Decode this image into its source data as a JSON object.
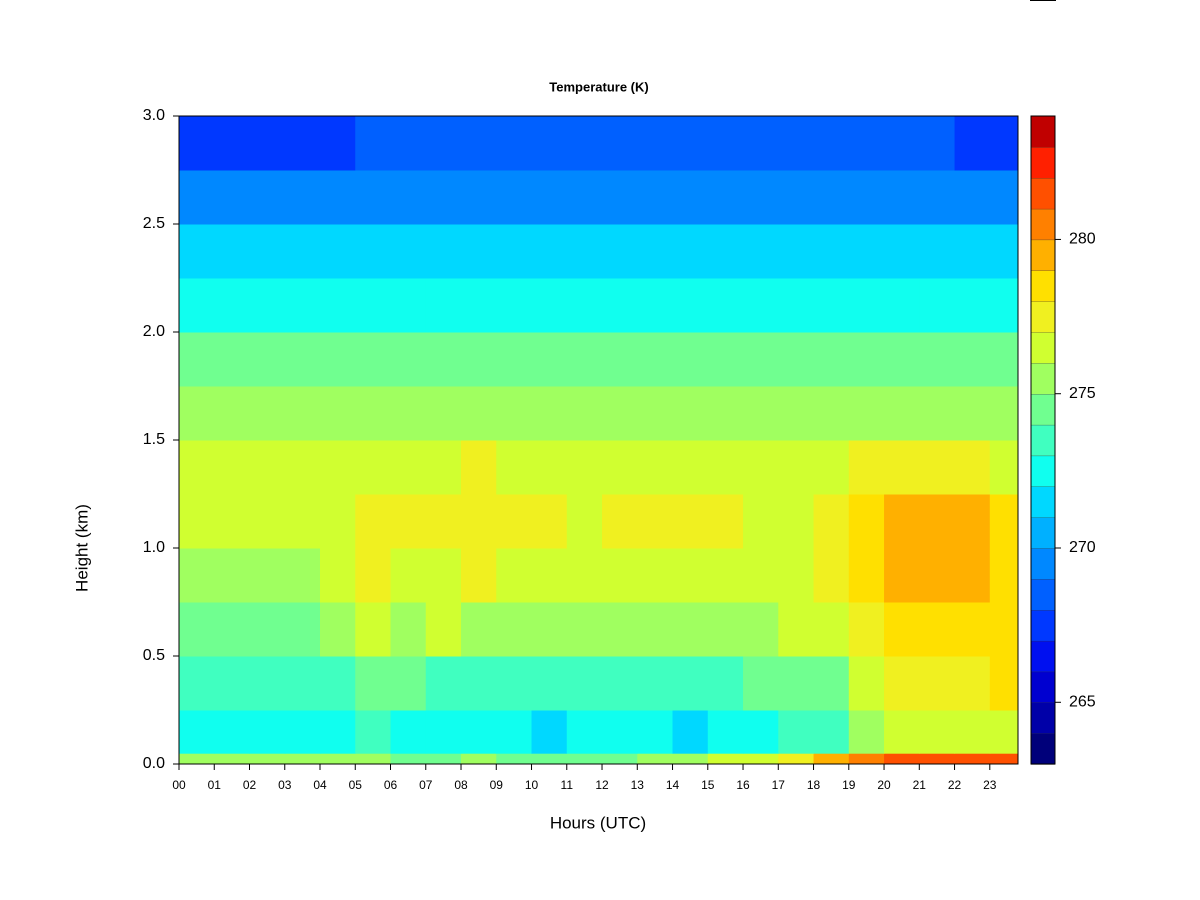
{
  "chart_data": {
    "type": "heatmap",
    "title": "Temperature (K)",
    "x_label": "Hours (UTC)",
    "y_label": "Height (km)",
    "x": [
      0,
      1,
      2,
      3,
      4,
      5,
      6,
      7,
      8,
      9,
      10,
      11,
      12,
      13,
      14,
      15,
      16,
      17,
      18,
      19,
      20,
      21,
      22,
      23
    ],
    "y": [
      0,
      0.05,
      0.25,
      0.5,
      0.75,
      1.0,
      1.25,
      1.5,
      1.75,
      2.0,
      2.25,
      2.5,
      2.75
    ],
    "z": [
      [
        275,
        275,
        275,
        275,
        275,
        275,
        274,
        274,
        275,
        274,
        274,
        274,
        274,
        275,
        275,
        276,
        276,
        277,
        279,
        280,
        281,
        281,
        281,
        281
      ],
      [
        272,
        272,
        272,
        272,
        272,
        273,
        272,
        272,
        272,
        272,
        271,
        272,
        272,
        272,
        271,
        272,
        272,
        273,
        273,
        275,
        276,
        276,
        276,
        276
      ],
      [
        273,
        273,
        273,
        273,
        273,
        274,
        274,
        273,
        273,
        273,
        273,
        273,
        273,
        273,
        273,
        273,
        274,
        274,
        274,
        276,
        277,
        277,
        277,
        278
      ],
      [
        274,
        274,
        274,
        274,
        275,
        276,
        275,
        276,
        275,
        275,
        275,
        275,
        275,
        275,
        275,
        275,
        275,
        276,
        276,
        277,
        278,
        278,
        278,
        278
      ],
      [
        275,
        275,
        275,
        275,
        276,
        277,
        276,
        276,
        277,
        276,
        276,
        276,
        276,
        276,
        276,
        276,
        276,
        276,
        277,
        278,
        279,
        279,
        279,
        278
      ],
      [
        276,
        276,
        276,
        276,
        276,
        277,
        277,
        277,
        277,
        277,
        277,
        276,
        277,
        277,
        277,
        277,
        276,
        276,
        277,
        278,
        279,
        279,
        279,
        278
      ],
      [
        276,
        276,
        276,
        276,
        276,
        276,
        276,
        276,
        277,
        276,
        276,
        276,
        276,
        276,
        276,
        276,
        276,
        276,
        276,
        277,
        277,
        277,
        277,
        276
      ],
      [
        275,
        275,
        275,
        275,
        275,
        275,
        275,
        275,
        275,
        275,
        275,
        275,
        275,
        275,
        275,
        275,
        275,
        275,
        275,
        275,
        275,
        275,
        275,
        275
      ],
      [
        274,
        274,
        274,
        274,
        274,
        274,
        274,
        274,
        274,
        274,
        274,
        274,
        274,
        274,
        274,
        274,
        274,
        274,
        274,
        274,
        274,
        274,
        274,
        274
      ],
      [
        272,
        272,
        272,
        272,
        272,
        272,
        272,
        272,
        272,
        272,
        272,
        272,
        272,
        272,
        272,
        272,
        272,
        272,
        272,
        272,
        272,
        272,
        272,
        272
      ],
      [
        271,
        271,
        271,
        271,
        271,
        271,
        271,
        271,
        271,
        271,
        271,
        271,
        271,
        271,
        271,
        271,
        271,
        271,
        271,
        271,
        271,
        271,
        271,
        271
      ],
      [
        269,
        269,
        269,
        269,
        269,
        269,
        269,
        269,
        269,
        269,
        269,
        269,
        269,
        269,
        269,
        269,
        269,
        269,
        269,
        269,
        269,
        269,
        269,
        269
      ],
      [
        267,
        267,
        267,
        267,
        267,
        268,
        268,
        268,
        268,
        268,
        268,
        268,
        268,
        268,
        268,
        268,
        268,
        268,
        268,
        268,
        268,
        268,
        267,
        267
      ]
    ],
    "xlim": [
      0,
      23.8
    ],
    "ylim": [
      0,
      3.0
    ],
    "xticks": [
      {
        "value": 0,
        "label": "00"
      },
      {
        "value": 1,
        "label": "01"
      },
      {
        "value": 2,
        "label": "02"
      },
      {
        "value": 3,
        "label": "03"
      },
      {
        "value": 4,
        "label": "04"
      },
      {
        "value": 5,
        "label": "05"
      },
      {
        "value": 6,
        "label": "06"
      },
      {
        "value": 7,
        "label": "07"
      },
      {
        "value": 8,
        "label": "08"
      },
      {
        "value": 9,
        "label": "09"
      },
      10,
      11,
      12,
      13,
      14,
      15,
      16,
      17,
      18,
      19,
      20,
      21,
      22,
      23
    ],
    "yticks": [
      {
        "value": 0,
        "label": "0.0"
      },
      0.5,
      {
        "value": 1,
        "label": "1.0"
      },
      1.5,
      {
        "value": 2,
        "label": "2.0"
      },
      2.5,
      {
        "value": 3,
        "label": "3.0"
      }
    ],
    "zlim": [
      263,
      284
    ],
    "zticks": [
      265,
      270,
      275,
      280
    ],
    "colors": [
      "#00007a",
      "#0000a8",
      "#0000d0",
      "#0010f0",
      "#0038ff",
      "#0060ff",
      "#0088ff",
      "#00b0ff",
      "#00d8ff",
      "#10ffef",
      "#40ffc0",
      "#70ff90",
      "#a0ff60",
      "#d0ff30",
      "#f0f020",
      "#ffe000",
      "#ffb000",
      "#ff8000",
      "#ff5000",
      "#ff2000",
      "#c00000"
    ]
  }
}
